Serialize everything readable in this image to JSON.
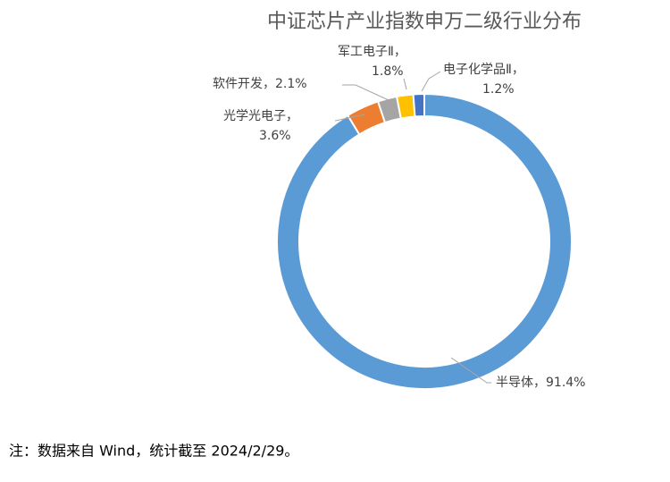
{
  "chart_data": {
    "type": "donut",
    "title": "中证芯片产业指数申万二级行业分布",
    "categories": [
      "半导体，",
      "光学光电子，",
      "软件开发，",
      "军工电子Ⅱ，",
      "电子化学品Ⅱ，"
    ],
    "values": [
      91.4,
      3.6,
      2.1,
      1.8,
      1.2
    ],
    "value_labels": [
      "91.4%",
      "3.6%",
      "2.1%",
      "1.8%",
      "1.2%"
    ],
    "colors": [
      "#5b9bd5",
      "#ed7d31",
      "#a5a5a5",
      "#ffc000",
      "#4472c4"
    ]
  },
  "note": "注：数据来自 Wind，统计截至 2024/2/29。"
}
